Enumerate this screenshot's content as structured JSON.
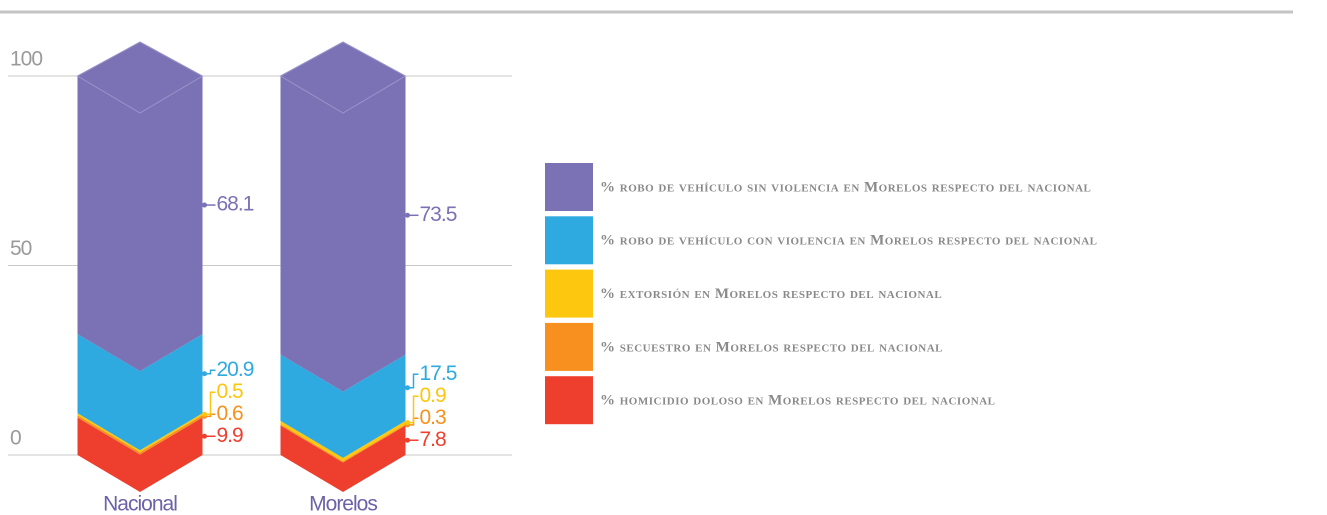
{
  "chart_data": {
    "type": "stacked_bar",
    "categories": [
      "Nacional",
      "Morelos"
    ],
    "series": [
      {
        "name": "% homicidio doloso en Morelos respecto del nacional",
        "color": "#ee3f2e",
        "values": [
          9.9,
          7.8
        ]
      },
      {
        "name": "% secuestro en Morelos respecto del nacional",
        "color": "#f7901e",
        "values": [
          0.6,
          0.3
        ]
      },
      {
        "name": "% extorsión en Morelos respecto del nacional",
        "color": "#fdc60f",
        "values": [
          0.5,
          0.9
        ]
      },
      {
        "name": "% robo de vehículo con violencia en Morelos respecto del nacional",
        "color": "#2eaae1",
        "values": [
          20.9,
          17.5
        ]
      },
      {
        "name": "% robo de vehículo sin violencia en Morelos respecto del nacional",
        "color": "#7b72b5",
        "values": [
          68.1,
          73.5
        ]
      }
    ],
    "ylim": [
      0,
      100
    ],
    "yticks": [
      0,
      50,
      100
    ],
    "grid": true
  }
}
